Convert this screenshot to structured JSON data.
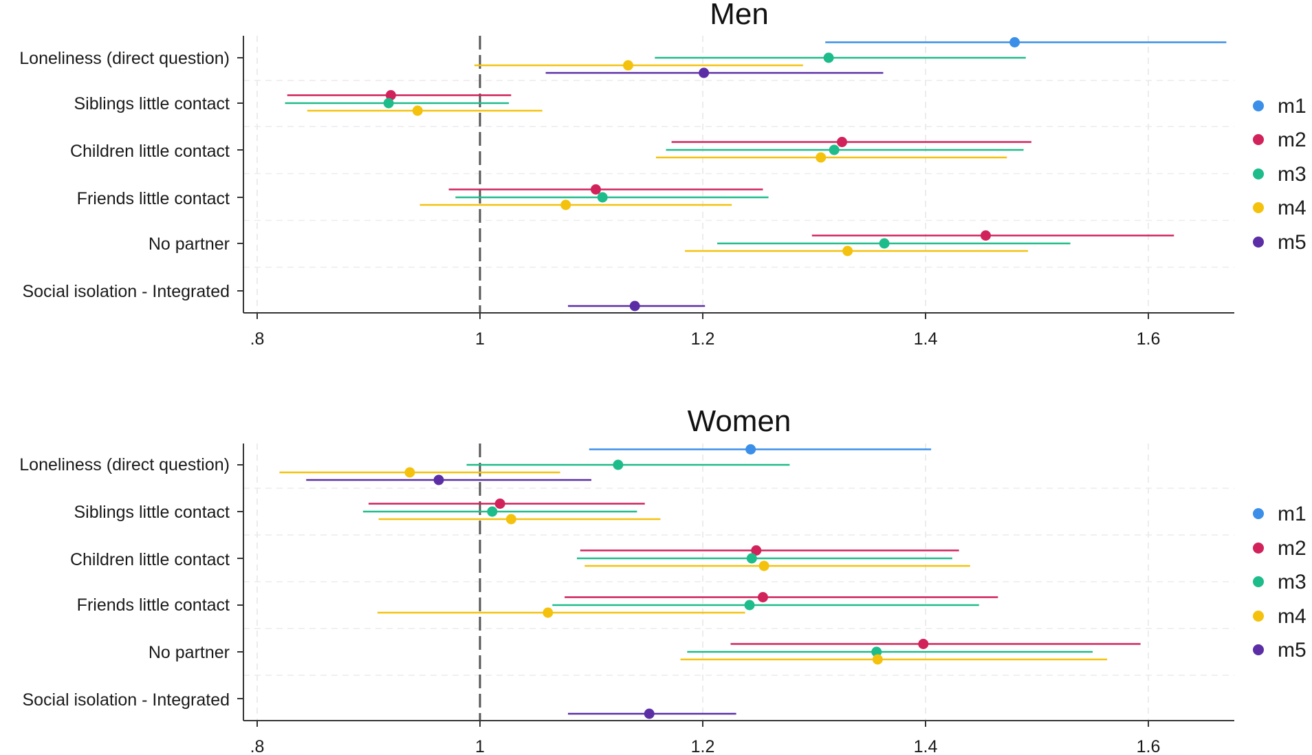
{
  "chart_data": [
    {
      "type": "coefplot",
      "title": "Men",
      "categories": [
        "Loneliness (direct question)",
        "Siblings little contact",
        "Children little contact",
        "Friends little contact",
        "No partner",
        "Social isolation - Integrated"
      ],
      "xlim": [
        0.79,
        1.68
      ],
      "ticks": [
        0.8,
        1,
        1.2,
        1.4,
        1.6
      ],
      "tick_labels": [
        ".8",
        "1",
        "1.2",
        "1.4",
        "1.6"
      ],
      "reference_line": 1,
      "legend": [
        "m1",
        "m2",
        "m3",
        "m4",
        "m5"
      ],
      "series": [
        {
          "name": "m1",
          "color": "#3b8fe8",
          "points": [
            {
              "category": 0,
              "estimate": 1.48,
              "lower": 1.31,
              "upper": 1.67
            }
          ]
        },
        {
          "name": "m2",
          "color": "#d1225b",
          "points": [
            {
              "category": 1,
              "estimate": 0.92,
              "lower": 0.827,
              "upper": 1.028
            },
            {
              "category": 2,
              "estimate": 1.325,
              "lower": 1.172,
              "upper": 1.495
            },
            {
              "category": 3,
              "estimate": 1.104,
              "lower": 0.972,
              "upper": 1.254
            },
            {
              "category": 4,
              "estimate": 1.454,
              "lower": 1.298,
              "upper": 1.623
            }
          ]
        },
        {
          "name": "m3",
          "color": "#1ebc8a",
          "points": [
            {
              "category": 0,
              "estimate": 1.313,
              "lower": 1.157,
              "upper": 1.49
            },
            {
              "category": 1,
              "estimate": 0.918,
              "lower": 0.825,
              "upper": 1.026
            },
            {
              "category": 2,
              "estimate": 1.318,
              "lower": 1.167,
              "upper": 1.488
            },
            {
              "category": 3,
              "estimate": 1.11,
              "lower": 0.978,
              "upper": 1.259
            },
            {
              "category": 4,
              "estimate": 1.363,
              "lower": 1.213,
              "upper": 1.53
            }
          ]
        },
        {
          "name": "m4",
          "color": "#f4c20d",
          "points": [
            {
              "category": 0,
              "estimate": 1.133,
              "lower": 0.995,
              "upper": 1.29
            },
            {
              "category": 1,
              "estimate": 0.944,
              "lower": 0.845,
              "upper": 1.056
            },
            {
              "category": 2,
              "estimate": 1.306,
              "lower": 1.158,
              "upper": 1.473
            },
            {
              "category": 3,
              "estimate": 1.077,
              "lower": 0.946,
              "upper": 1.226
            },
            {
              "category": 4,
              "estimate": 1.33,
              "lower": 1.184,
              "upper": 1.492
            }
          ]
        },
        {
          "name": "m5",
          "color": "#5b2ea6",
          "points": [
            {
              "category": 0,
              "estimate": 1.201,
              "lower": 1.059,
              "upper": 1.362
            },
            {
              "category": 5,
              "estimate": 1.139,
              "lower": 1.079,
              "upper": 1.202
            }
          ]
        }
      ]
    },
    {
      "type": "coefplot",
      "title": "Women",
      "categories": [
        "Loneliness (direct question)",
        "Siblings little contact",
        "Children little contact",
        "Friends little contact",
        "No partner",
        "Social isolation - Integrated"
      ],
      "xlim": [
        0.79,
        1.68
      ],
      "ticks": [
        0.8,
        1,
        1.2,
        1.4,
        1.6
      ],
      "tick_labels": [
        ".8",
        "1",
        "1.2",
        "1.4",
        "1.6"
      ],
      "reference_line": 1,
      "legend": [
        "m1",
        "m2",
        "m3",
        "m4",
        "m5"
      ],
      "series": [
        {
          "name": "m1",
          "color": "#3b8fe8",
          "points": [
            {
              "category": 0,
              "estimate": 1.243,
              "lower": 1.098,
              "upper": 1.405
            }
          ]
        },
        {
          "name": "m2",
          "color": "#d1225b",
          "points": [
            {
              "category": 1,
              "estimate": 1.018,
              "lower": 0.9,
              "upper": 1.148
            },
            {
              "category": 2,
              "estimate": 1.248,
              "lower": 1.09,
              "upper": 1.43
            },
            {
              "category": 3,
              "estimate": 1.254,
              "lower": 1.076,
              "upper": 1.465
            },
            {
              "category": 4,
              "estimate": 1.398,
              "lower": 1.225,
              "upper": 1.593
            }
          ]
        },
        {
          "name": "m3",
          "color": "#1ebc8a",
          "points": [
            {
              "category": 0,
              "estimate": 1.124,
              "lower": 0.988,
              "upper": 1.278
            },
            {
              "category": 1,
              "estimate": 1.011,
              "lower": 0.895,
              "upper": 1.141
            },
            {
              "category": 2,
              "estimate": 1.244,
              "lower": 1.087,
              "upper": 1.424
            },
            {
              "category": 3,
              "estimate": 1.242,
              "lower": 1.065,
              "upper": 1.448
            },
            {
              "category": 4,
              "estimate": 1.356,
              "lower": 1.186,
              "upper": 1.55
            }
          ]
        },
        {
          "name": "m4",
          "color": "#f4c20d",
          "points": [
            {
              "category": 0,
              "estimate": 0.937,
              "lower": 0.82,
              "upper": 1.072
            },
            {
              "category": 1,
              "estimate": 1.028,
              "lower": 0.909,
              "upper": 1.162
            },
            {
              "category": 2,
              "estimate": 1.255,
              "lower": 1.094,
              "upper": 1.44
            },
            {
              "category": 3,
              "estimate": 1.061,
              "lower": 0.908,
              "upper": 1.238
            },
            {
              "category": 4,
              "estimate": 1.357,
              "lower": 1.18,
              "upper": 1.563
            }
          ]
        },
        {
          "name": "m5",
          "color": "#5b2ea6",
          "points": [
            {
              "category": 0,
              "estimate": 0.963,
              "lower": 0.844,
              "upper": 1.1
            },
            {
              "category": 5,
              "estimate": 1.152,
              "lower": 1.079,
              "upper": 1.23
            }
          ]
        }
      ]
    }
  ]
}
